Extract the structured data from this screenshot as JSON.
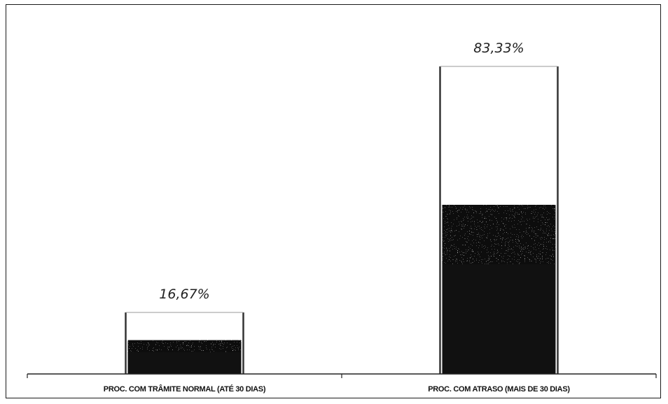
{
  "chart_data": {
    "type": "bar",
    "categories": [
      "PROC. COM TRÂMITE NORMAL (ATÉ 30 DIAS)",
      "PROC. COM ATRASO (MAIS DE 30 DIAS)"
    ],
    "values": [
      16.67,
      83.33
    ],
    "data_labels": [
      "16,67%",
      "83,33%"
    ],
    "ylim": [
      0,
      100
    ],
    "grid": false,
    "legend": "none",
    "colors": {
      "bar_fill": "#111111",
      "bar_outline": "#333333",
      "axis": "#222222"
    }
  }
}
